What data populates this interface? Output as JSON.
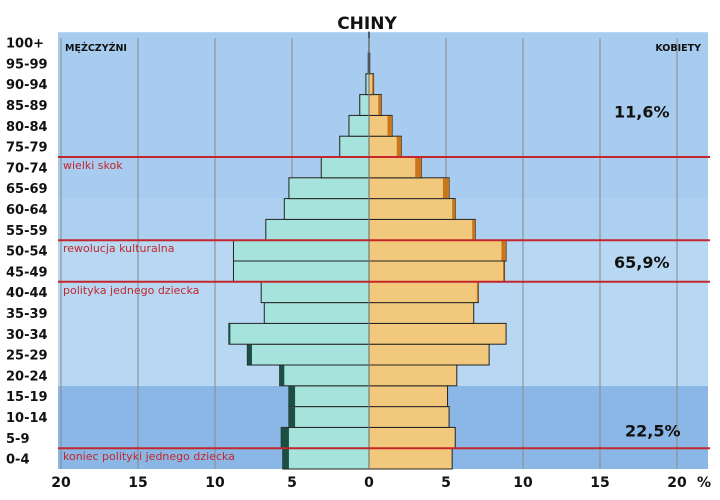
{
  "chart_data": {
    "type": "bar",
    "title": "CHINY",
    "left_label": "MĘŻCZYŹNI",
    "right_label": "KOBIETY",
    "x_unit": "%",
    "xlim": [
      -20,
      20
    ],
    "x_ticks": [
      -20,
      -15,
      -10,
      -5,
      0,
      5,
      10,
      15,
      20
    ],
    "x_tick_labels": [
      "20",
      "15",
      "10",
      "5",
      "0",
      "5",
      "10",
      "15",
      "20"
    ],
    "categories": [
      "0-4",
      "5-9",
      "10-14",
      "15-19",
      "20-24",
      "25-29",
      "30-34",
      "35-39",
      "40-44",
      "45-49",
      "50-54",
      "55-59",
      "60-64",
      "65-69",
      "70-74",
      "75-79",
      "80-84",
      "85-89",
      "90-94",
      "95-99",
      "100+"
    ],
    "series": [
      {
        "name": "MĘŻCZYŹNI",
        "values": [
          5.6,
          5.7,
          5.2,
          5.2,
          5.8,
          7.9,
          9.1,
          6.8,
          7.0,
          8.8,
          8.8,
          6.7,
          5.5,
          5.2,
          3.1,
          1.9,
          1.3,
          0.6,
          0.2,
          0.05,
          0.01
        ],
        "dark_values": [
          0.4,
          0.5,
          0.4,
          0.4,
          0.3,
          0.3,
          0.1,
          0,
          0,
          0,
          0,
          0,
          0,
          0,
          0,
          0,
          0,
          0,
          0,
          0,
          0
        ]
      },
      {
        "name": "KOBIETY",
        "values": [
          5.4,
          5.6,
          5.2,
          5.1,
          5.7,
          7.8,
          8.9,
          6.8,
          7.1,
          8.8,
          8.9,
          6.9,
          5.6,
          5.2,
          3.4,
          2.1,
          1.5,
          0.8,
          0.3,
          0.05,
          0.01
        ],
        "dark_values": [
          0,
          0,
          0,
          0,
          0,
          0,
          0,
          0,
          0.1,
          0.1,
          0.3,
          0.2,
          0.2,
          0.4,
          0.4,
          0.3,
          0.3,
          0.2,
          0.1,
          0,
          0
        ]
      }
    ],
    "bands": [
      {
        "from": "0-4",
        "to": "15-19",
        "pct": "22,5%"
      },
      {
        "from": "20-24",
        "to": "60-64",
        "pct": "65,9%"
      },
      {
        "from": "65-69",
        "to": "100+",
        "pct": "11,6%"
      }
    ],
    "events": [
      {
        "label": "wielki skok",
        "above": "70-74"
      },
      {
        "label": "rewolucja kulturalna",
        "above": "50-54"
      },
      {
        "label": "polityka jednego dziecka",
        "above": "40-44"
      },
      {
        "label": "koniec polityki jednego dziecka",
        "above": "0-4"
      }
    ],
    "colors": {
      "male": "#a6e3dd",
      "male_dark": "#1c4f44",
      "female": "#f2c97c",
      "female_dark": "#c8761c",
      "band_light": "#b7d7f3",
      "band_mid": "#a7ccef",
      "band_dark": "#8ab7e6",
      "event_line": "#c2272d",
      "event_text": "#c2272d",
      "grid": "#888888"
    }
  }
}
